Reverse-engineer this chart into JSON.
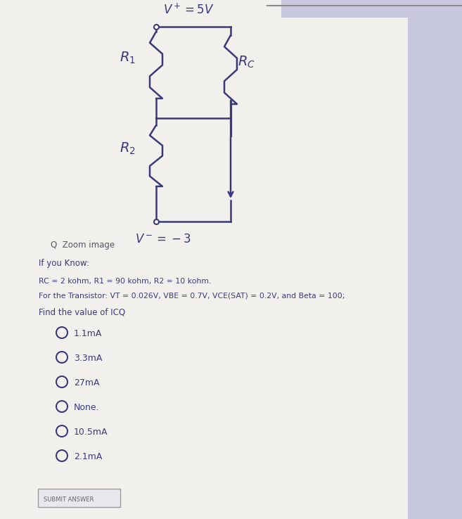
{
  "bg_color": "#c8c8dc",
  "paper_color": "#f2f0ec",
  "circuit_color": "#3a3a7a",
  "text_color": "#3a3a7a",
  "zoom_text": "Zoom image",
  "if_you_know": "If you Know:",
  "line1": "RC = 2 kohm, R1 = 90 kohm, R2 = 10 kohm.",
  "line2": "For the Transistor: VT = 0.026V, VBE = 0.7V, VCE(SAT) = 0.2V, and Beta = 100;",
  "find_text": "Find the value of ICQ",
  "options": [
    "1.1mA",
    "3.3mA",
    "27mA",
    "None.",
    "10.5mA",
    "2.1mA"
  ],
  "submit_text": "SUBMIT ANSWER",
  "top_line_color": "#888888"
}
